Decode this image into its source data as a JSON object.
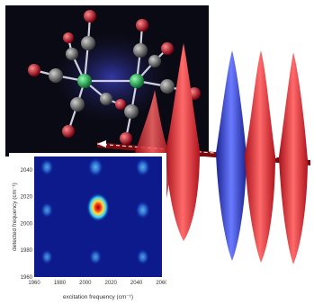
{
  "plot": {
    "xlabel": "excitation frequency (cm⁻¹)",
    "ylabel": "detected frequency (cm⁻¹)",
    "x_ticks": [
      "1960",
      "1980",
      "2000",
      "2020",
      "2040",
      "2060"
    ],
    "y_ticks": [
      "1960",
      "1980",
      "2000",
      "2020",
      "2040"
    ],
    "x_range": [
      1960,
      2060
    ],
    "y_range": [
      1960,
      2050
    ],
    "peaks": [
      {
        "x": 1970,
        "y": 2042,
        "strength": 0.35
      },
      {
        "x": 2008,
        "y": 2042,
        "strength": 0.5
      },
      {
        "x": 2045,
        "y": 2042,
        "strength": 0.45
      },
      {
        "x": 1970,
        "y": 2010,
        "strength": 0.3
      },
      {
        "x": 2010,
        "y": 2012,
        "strength": 1.0
      },
      {
        "x": 2045,
        "y": 2010,
        "strength": 0.45
      },
      {
        "x": 1970,
        "y": 1975,
        "strength": 0.25
      },
      {
        "x": 2008,
        "y": 1975,
        "strength": 0.3
      },
      {
        "x": 2045,
        "y": 1975,
        "strength": 0.3
      }
    ]
  },
  "colors": {
    "molecule_bg": "#0a0a14",
    "metal_atom": "#1aa84a",
    "carbon_atom": "#6e6e6e",
    "oxygen_atom": "#d4122a",
    "red_pulse": "#e0333a",
    "blue_pulse": "#2c3fd6",
    "plot_bg": "#0c1a8c"
  }
}
